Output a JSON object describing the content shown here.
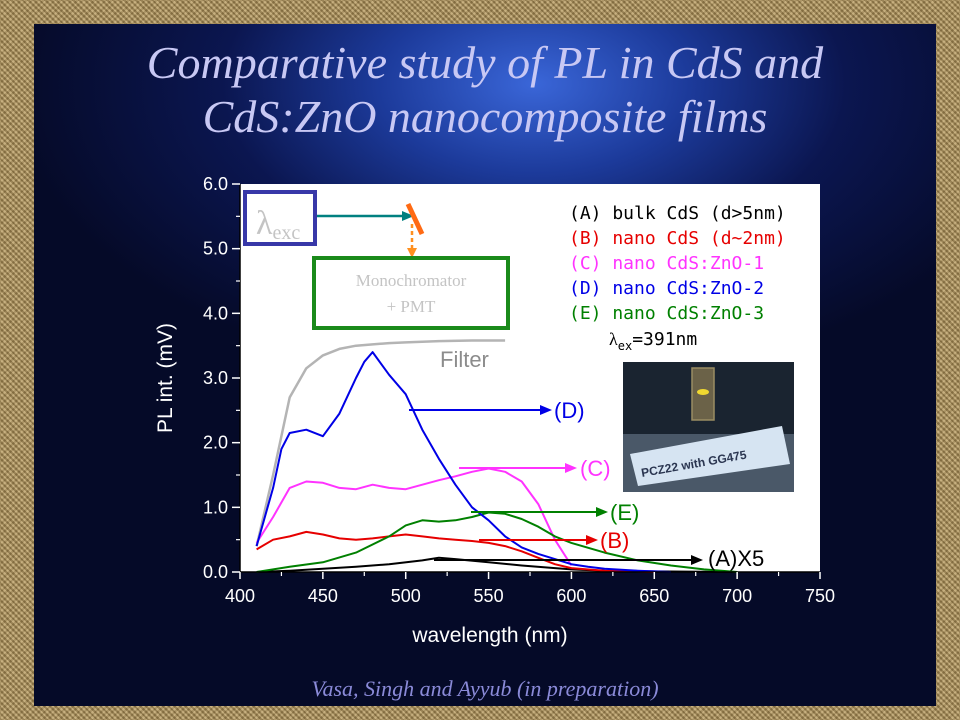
{
  "slide": {
    "title_line1": "Comparative study of PL in CdS and",
    "title_line2": "CdS:ZnO nanocomposite films",
    "credit": "Vasa, Singh and Ayyub (in preparation)"
  },
  "inset": {
    "lambda_symbol": "λ",
    "lambda_sub": "exc",
    "monochromator_line1": "Monochromator",
    "monochromator_line2": "+ PMT",
    "photo_label": "PCZ22 with GG475"
  },
  "annotations": {
    "filter": "Filter",
    "D": "(D)",
    "C": "(C)",
    "E": "(E)",
    "B": "(B)",
    "A": "(A)X5"
  },
  "legend": {
    "lambda_symbol": "λ",
    "lambda_sub": "ex",
    "lambda_value": "=391nm"
  },
  "colors": {
    "A": "#000000",
    "B": "#e60000",
    "C": "#ff33ff",
    "D": "#0000e6",
    "E": "#008000",
    "Filter": "#b4b4b4",
    "plot_background": "#ffffff",
    "slide_text": "#c8c8f4"
  },
  "chart_data": {
    "type": "line",
    "xlabel": "wavelength (nm)",
    "ylabel": "PL int. (mV)",
    "xlim": [
      400,
      750
    ],
    "ylim": [
      0,
      6
    ],
    "xticks": [
      "400",
      "450",
      "500",
      "550",
      "600",
      "650",
      "700",
      "750"
    ],
    "yticks": [
      "0.0",
      "1.0",
      "2.0",
      "3.0",
      "4.0",
      "5.0",
      "6.0"
    ],
    "grid": false,
    "legend_position": "top-right",
    "series": [
      {
        "key": "A",
        "name": "(A) bulk CdS (d>5nm)",
        "x": [
          410,
          430,
          450,
          470,
          490,
          510,
          520,
          530,
          550,
          570,
          590,
          600,
          620,
          650,
          700
        ],
        "y": [
          0.0,
          0.02,
          0.05,
          0.08,
          0.12,
          0.18,
          0.22,
          0.2,
          0.15,
          0.1,
          0.06,
          0.04,
          0.02,
          0.01,
          0.0
        ]
      },
      {
        "key": "B",
        "name": "(B) nano CdS (d~2nm)",
        "x": [
          410,
          420,
          430,
          440,
          450,
          460,
          470,
          480,
          490,
          500,
          510,
          520,
          530,
          540,
          550,
          560,
          570,
          580,
          590,
          600,
          620,
          650
        ],
        "y": [
          0.35,
          0.5,
          0.55,
          0.62,
          0.58,
          0.52,
          0.5,
          0.52,
          0.55,
          0.58,
          0.55,
          0.52,
          0.5,
          0.48,
          0.45,
          0.4,
          0.32,
          0.22,
          0.12,
          0.06,
          0.02,
          0.0
        ]
      },
      {
        "key": "C",
        "name": "(C) nano CdS:ZnO-1",
        "x": [
          410,
          420,
          430,
          440,
          450,
          460,
          470,
          480,
          490,
          500,
          510,
          520,
          530,
          540,
          550,
          560,
          570,
          580,
          590,
          600
        ],
        "y": [
          0.45,
          0.85,
          1.3,
          1.4,
          1.38,
          1.3,
          1.28,
          1.35,
          1.3,
          1.28,
          1.35,
          1.42,
          1.48,
          1.55,
          1.6,
          1.55,
          1.4,
          1.05,
          0.5,
          0.1
        ]
      },
      {
        "key": "D",
        "name": "(D) nano CdS:ZnO-2",
        "x": [
          410,
          420,
          425,
          430,
          440,
          450,
          460,
          470,
          475,
          480,
          490,
          500,
          510,
          520,
          530,
          540,
          550,
          560,
          570,
          580,
          590,
          600,
          610,
          620,
          640,
          660
        ],
        "y": [
          0.4,
          1.3,
          1.9,
          2.15,
          2.2,
          2.1,
          2.45,
          3.0,
          3.25,
          3.4,
          3.05,
          2.75,
          2.2,
          1.75,
          1.35,
          1.0,
          0.8,
          0.55,
          0.38,
          0.28,
          0.2,
          0.12,
          0.08,
          0.05,
          0.02,
          0.0
        ]
      },
      {
        "key": "E",
        "name": "(E) nano CdS:ZnO-3",
        "x": [
          410,
          430,
          450,
          470,
          490,
          500,
          510,
          520,
          530,
          540,
          550,
          560,
          570,
          580,
          590,
          600,
          620,
          640,
          660,
          680,
          700
        ],
        "y": [
          0.0,
          0.08,
          0.15,
          0.3,
          0.55,
          0.72,
          0.8,
          0.78,
          0.8,
          0.85,
          0.92,
          0.9,
          0.82,
          0.7,
          0.55,
          0.45,
          0.3,
          0.18,
          0.1,
          0.04,
          0.0
        ]
      },
      {
        "key": "Filter",
        "name": "Filter",
        "x": [
          410,
          420,
          430,
          440,
          450,
          460,
          470,
          480,
          490,
          500,
          510,
          520,
          540,
          560
        ],
        "y": [
          0.4,
          1.5,
          2.7,
          3.15,
          3.35,
          3.45,
          3.5,
          3.52,
          3.54,
          3.55,
          3.56,
          3.57,
          3.58,
          3.58
        ]
      }
    ]
  }
}
